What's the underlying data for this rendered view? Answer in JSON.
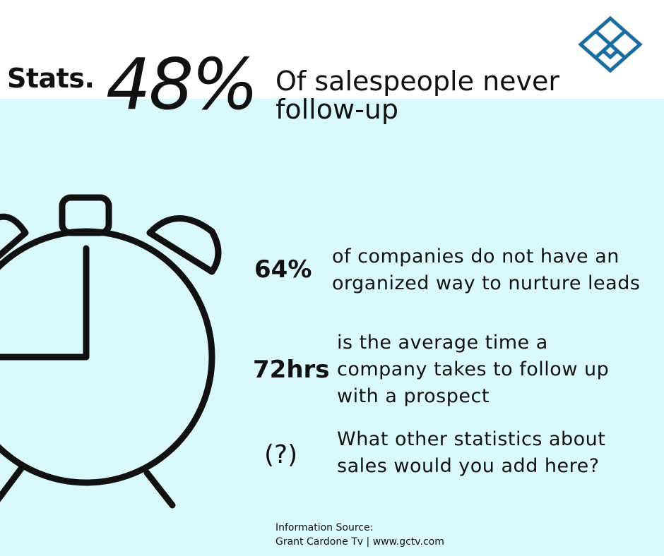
{
  "header": {
    "stats_label": "Stats.",
    "big_percent": "48%",
    "headline_line1": "Of salespeople never",
    "headline_line2": "follow-up"
  },
  "stats": [
    {
      "value": "64%",
      "text_line1": "of companies do not have an",
      "text_line2": "organized way to nurture leads"
    },
    {
      "value": "72hrs",
      "text_line1": "is the average time a",
      "text_line2": "company takes to follow up",
      "text_line3": "with a prospect"
    },
    {
      "value": "(?)",
      "text_line1": "What other statistics about",
      "text_line2": "sales would you add here?"
    }
  ],
  "source": {
    "line1": "Information Source:",
    "line2": "Grant Cardone Tv | www.gctv.com"
  },
  "icons": {
    "logo": "diamond-maze-logo-icon",
    "clock": "alarm-clock-icon"
  },
  "colors": {
    "band_background": "#daf9fc",
    "logo_blue": "#1a6d9e",
    "text": "#111111"
  }
}
